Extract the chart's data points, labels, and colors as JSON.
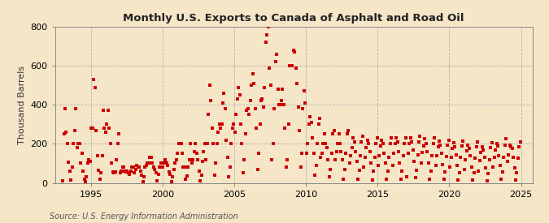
{
  "title": "Monthly U.S. Exports to Canada of Asphalt and Road Oil",
  "ylabel": "Thousand Barrels",
  "source": "Source: U.S. Energy Information Administration",
  "bg_color": "#f5e6c8",
  "plot_bg_color": "#f5e6c8",
  "dot_color": "#cc0000",
  "xlim": [
    1992.5,
    2025.8
  ],
  "ylim": [
    0,
    800
  ],
  "yticks": [
    0,
    200,
    400,
    600,
    800
  ],
  "xticks": [
    1995,
    2000,
    2005,
    2010,
    2015,
    2020,
    2025
  ],
  "start_year": 1993,
  "monthly_data": [
    10,
    250,
    380,
    260,
    200,
    105,
    60,
    15,
    80,
    200,
    270,
    380,
    180,
    200,
    200,
    100,
    150,
    60,
    20,
    5,
    30,
    100,
    120,
    110,
    280,
    280,
    530,
    490,
    270,
    140,
    65,
    20,
    50,
    140,
    370,
    280,
    260,
    300,
    370,
    280,
    200,
    100,
    55,
    50,
    55,
    120,
    200,
    250,
    50,
    60,
    80,
    80,
    60,
    55,
    60,
    50,
    45,
    60,
    80,
    80,
    50,
    70,
    90,
    80,
    80,
    60,
    40,
    5,
    30,
    80,
    90,
    100,
    100,
    130,
    130,
    100,
    80,
    70,
    50,
    10,
    45,
    80,
    100,
    100,
    80,
    100,
    120,
    100,
    90,
    55,
    45,
    8,
    30,
    70,
    100,
    120,
    150,
    200,
    200,
    200,
    150,
    80,
    80,
    20,
    35,
    80,
    120,
    200,
    100,
    120,
    160,
    200,
    150,
    120,
    60,
    12,
    40,
    110,
    160,
    200,
    120,
    200,
    350,
    500,
    420,
    280,
    200,
    40,
    100,
    200,
    260,
    300,
    280,
    300,
    410,
    460,
    380,
    220,
    130,
    30,
    80,
    200,
    280,
    300,
    260,
    350,
    430,
    490,
    450,
    300,
    200,
    50,
    120,
    250,
    370,
    380,
    350,
    420,
    500,
    560,
    510,
    380,
    280,
    70,
    150,
    300,
    420,
    430,
    390,
    490,
    720,
    760,
    800,
    590,
    500,
    120,
    200,
    380,
    620,
    660,
    480,
    400,
    400,
    420,
    480,
    400,
    280,
    80,
    120,
    300,
    600,
    600,
    600,
    680,
    670,
    590,
    510,
    390,
    270,
    80,
    150,
    380,
    470,
    410,
    150,
    200,
    300,
    340,
    310,
    230,
    150,
    40,
    90,
    200,
    300,
    330,
    130,
    150,
    200,
    250,
    200,
    180,
    120,
    30,
    70,
    150,
    250,
    270,
    120,
    160,
    200,
    250,
    200,
    160,
    120,
    20,
    70,
    150,
    250,
    270,
    100,
    140,
    180,
    230,
    210,
    160,
    110,
    20,
    65,
    140,
    210,
    240,
    80,
    130,
    180,
    220,
    200,
    160,
    100,
    15,
    60,
    130,
    200,
    230,
    90,
    140,
    190,
    220,
    200,
    150,
    100,
    20,
    60,
    130,
    200,
    230,
    90,
    150,
    200,
    230,
    210,
    160,
    100,
    20,
    60,
    140,
    200,
    230,
    30,
    150,
    200,
    230,
    210,
    170,
    110,
    25,
    65,
    145,
    210,
    240,
    100,
    155,
    190,
    225,
    200,
    160,
    100,
    20,
    60,
    140,
    200,
    230,
    90,
    140,
    185,
    215,
    195,
    150,
    95,
    18,
    55,
    135,
    195,
    220,
    80,
    130,
    175,
    205,
    185,
    145,
    90,
    16,
    52,
    130,
    190,
    215,
    70,
    120,
    165,
    195,
    175,
    140,
    80,
    14,
    50,
    125,
    185,
    210,
    60,
    115,
    155,
    185,
    170,
    130,
    75,
    12,
    48,
    120,
    180,
    205,
    80,
    130,
    170,
    200,
    190,
    140,
    88,
    18,
    58,
    130,
    195,
    225,
    110,
    145,
    195,
    185,
    175,
    130,
    78,
    15,
    52,
    125,
    185,
    210
  ]
}
